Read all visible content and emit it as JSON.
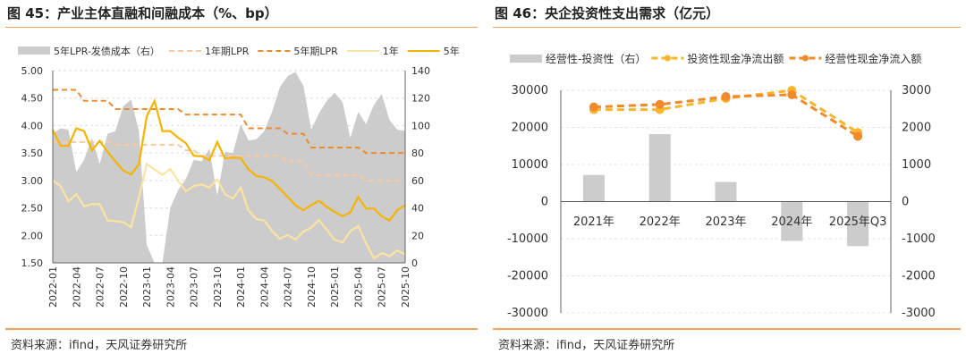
{
  "chart_data": [
    {
      "type": "line",
      "title": "图 45：产业主体直融和间融成本（%、bp）",
      "source": "资料来源：ifind，天风证券研究所",
      "x_ticks": [
        "2022-01",
        "2022-04",
        "2022-07",
        "2022-10",
        "2023-01",
        "2023-04",
        "2023-07",
        "2023-10",
        "2024-01",
        "2024-04",
        "2024-07",
        "2024-10",
        "2025-01",
        "2025-04",
        "2025-07",
        "2025-10"
      ],
      "y_left": {
        "ticks": [
          "5.00",
          "4.50",
          "4.00",
          "3.50",
          "3.00",
          "2.50",
          "2.00",
          "1.50"
        ],
        "range": [
          1.5,
          5.0
        ]
      },
      "y_right": {
        "ticks": [
          "140",
          "120",
          "100",
          "80",
          "60",
          "40",
          "20",
          "0"
        ],
        "range": [
          0,
          140
        ]
      },
      "series": [
        {
          "name": "5年LPR-发债成本（右）",
          "kind": "area",
          "axis": "right",
          "color": "#cccccc",
          "values": [
            94,
            98,
            97,
            66,
            75,
            91,
            72,
            94,
            96,
            114,
            119,
            96,
            13,
            0,
            0,
            40,
            53,
            61,
            75,
            74,
            83,
            49,
            81,
            80,
            101,
            89,
            90,
            96,
            110,
            128,
            136,
            139,
            129,
            97,
            109,
            118,
            124,
            117,
            91,
            110,
            101,
            115,
            123,
            104,
            97,
            96
          ]
        },
        {
          "name": "1年期LPR",
          "kind": "dash",
          "axis": "left",
          "color": "#f9c9a0",
          "values": [
            3.7,
            3.7,
            3.7,
            3.7,
            3.7,
            3.7,
            3.7,
            3.7,
            3.65,
            3.65,
            3.65,
            3.65,
            3.65,
            3.65,
            3.65,
            3.65,
            3.65,
            3.55,
            3.55,
            3.45,
            3.45,
            3.45,
            3.45,
            3.45,
            3.45,
            3.45,
            3.45,
            3.45,
            3.45,
            3.45,
            3.35,
            3.35,
            3.35,
            3.1,
            3.1,
            3.1,
            3.1,
            3.1,
            3.1,
            3.1,
            3.0,
            3.0,
            3.0,
            3.0,
            3.0,
            3.0
          ]
        },
        {
          "name": "5年期LPR",
          "kind": "dash",
          "axis": "left",
          "color": "#f08a2a",
          "values": [
            4.65,
            4.65,
            4.65,
            4.65,
            4.45,
            4.45,
            4.45,
            4.45,
            4.3,
            4.3,
            4.3,
            4.3,
            4.3,
            4.3,
            4.3,
            4.3,
            4.3,
            4.2,
            4.2,
            4.2,
            4.2,
            4.2,
            4.2,
            4.2,
            4.2,
            3.95,
            3.95,
            3.95,
            3.95,
            3.95,
            3.85,
            3.85,
            3.85,
            3.6,
            3.6,
            3.6,
            3.6,
            3.6,
            3.6,
            3.6,
            3.5,
            3.5,
            3.5,
            3.5,
            3.5,
            3.5
          ]
        },
        {
          "name": "1年",
          "kind": "line",
          "axis": "left",
          "color": "#fbe3a0",
          "values": [
            3.0,
            2.9,
            2.62,
            2.75,
            2.53,
            2.57,
            2.57,
            2.27,
            2.26,
            2.24,
            2.15,
            2.7,
            3.3,
            3.2,
            3.1,
            3.21,
            3.0,
            2.8,
            2.9,
            2.93,
            2.87,
            3.02,
            2.75,
            2.67,
            2.87,
            2.45,
            2.3,
            2.27,
            2.08,
            1.94,
            2.01,
            1.92,
            2.07,
            2.14,
            2.28,
            2.1,
            1.92,
            1.87,
            2.08,
            2.17,
            1.86,
            1.58,
            1.68,
            1.62,
            1.73,
            1.65
          ]
        },
        {
          "name": "5年",
          "kind": "line",
          "axis": "left",
          "color": "#f5b400",
          "values": [
            3.92,
            3.63,
            3.63,
            3.95,
            3.9,
            3.55,
            3.72,
            3.52,
            3.35,
            3.18,
            3.11,
            3.3,
            4.17,
            4.45,
            3.9,
            3.9,
            3.78,
            3.68,
            3.45,
            3.44,
            3.37,
            3.7,
            3.4,
            3.42,
            3.41,
            3.2,
            3.08,
            3.06,
            2.99,
            2.85,
            2.7,
            2.55,
            2.46,
            2.55,
            2.63,
            2.52,
            2.43,
            2.35,
            2.42,
            2.7,
            2.49,
            2.49,
            2.35,
            2.27,
            2.46,
            2.55
          ]
        }
      ]
    },
    {
      "type": "bar+line",
      "title": "图 46：央企投资性支出需求（亿元）",
      "source": "资料来源：ifind，天风证券研究所",
      "categories": [
        "2021年",
        "2022年",
        "2023年",
        "2024年",
        "2025年Q3"
      ],
      "y_left": {
        "ticks": [
          "30000",
          "20000",
          "10000",
          "0",
          "-10000",
          "-20000",
          "-30000"
        ],
        "range": [
          -30000,
          30000
        ]
      },
      "y_right": {
        "ticks": [
          "3000",
          "2000",
          "1000",
          "0",
          "-1000",
          "-2000",
          "-3000"
        ],
        "range": [
          -3000,
          3000
        ]
      },
      "series": [
        {
          "name": "经营性-投资性（右）",
          "kind": "bar",
          "axis": "right",
          "color": "#cccccc",
          "values": [
            720,
            1820,
            530,
            -1060,
            -1200
          ]
        },
        {
          "name": "投资性现金净流出额",
          "kind": "dashdot",
          "axis": "left",
          "color": "#f9b52c",
          "values": [
            24800,
            24800,
            27800,
            30000,
            18600
          ]
        },
        {
          "name": "经营性现金净流入额",
          "kind": "dashdot",
          "axis": "left",
          "color": "#f08a2a",
          "values": [
            25500,
            26200,
            28300,
            28800,
            17600
          ]
        }
      ]
    }
  ]
}
